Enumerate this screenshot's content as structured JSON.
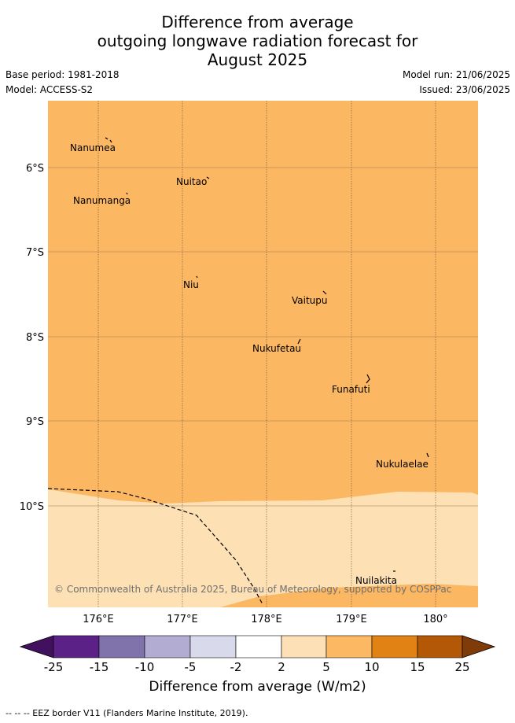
{
  "title_lines": [
    "Difference from average",
    "outgoing longwave radiation forecast for",
    "August 2025"
  ],
  "header": {
    "base_period": "Base period: 1981-2018",
    "model": "Model: ACCESS-S2",
    "model_run": "Model run: 21/06/2025",
    "issued": "Issued: 23/06/2025"
  },
  "map": {
    "lon_ticks": [
      "176°E",
      "177°E",
      "178°E",
      "179°E",
      "180°"
    ],
    "lat_ticks": [
      "6°S",
      "7°S",
      "8°S",
      "9°S",
      "10°S"
    ],
    "places": [
      "Nanumea",
      "Nuitao",
      "Nanumanga",
      "Niu",
      "Vaitupu",
      "Nukufetau",
      "Funafuti",
      "Nukulaelae",
      "Nuilakita"
    ],
    "regions": [
      {
        "category": "5 to 10",
        "color": "#fbb762"
      },
      {
        "category": "2 to 5",
        "color": "#fde0b4"
      }
    ],
    "credit": "© Commonwealth of Australia 2025, Bureau of Meteorology, supported by COSPPac"
  },
  "colorbar": {
    "ticks": [
      "-25",
      "-15",
      "-10",
      "-5",
      "-2",
      "2",
      "5",
      "10",
      "15",
      "25"
    ],
    "colors": [
      "#41105e",
      "#5b2186",
      "#8073ac",
      "#b2abd2",
      "#d8daeb",
      "#ffffff",
      "#fee0b6",
      "#fdb863",
      "#e08214",
      "#b35806",
      "#7f3b08"
    ],
    "label": "Difference from average (W/m2)"
  },
  "footnote": "--  --  -- EEZ border V11 (Flanders Marine Institute, 2019)."
}
